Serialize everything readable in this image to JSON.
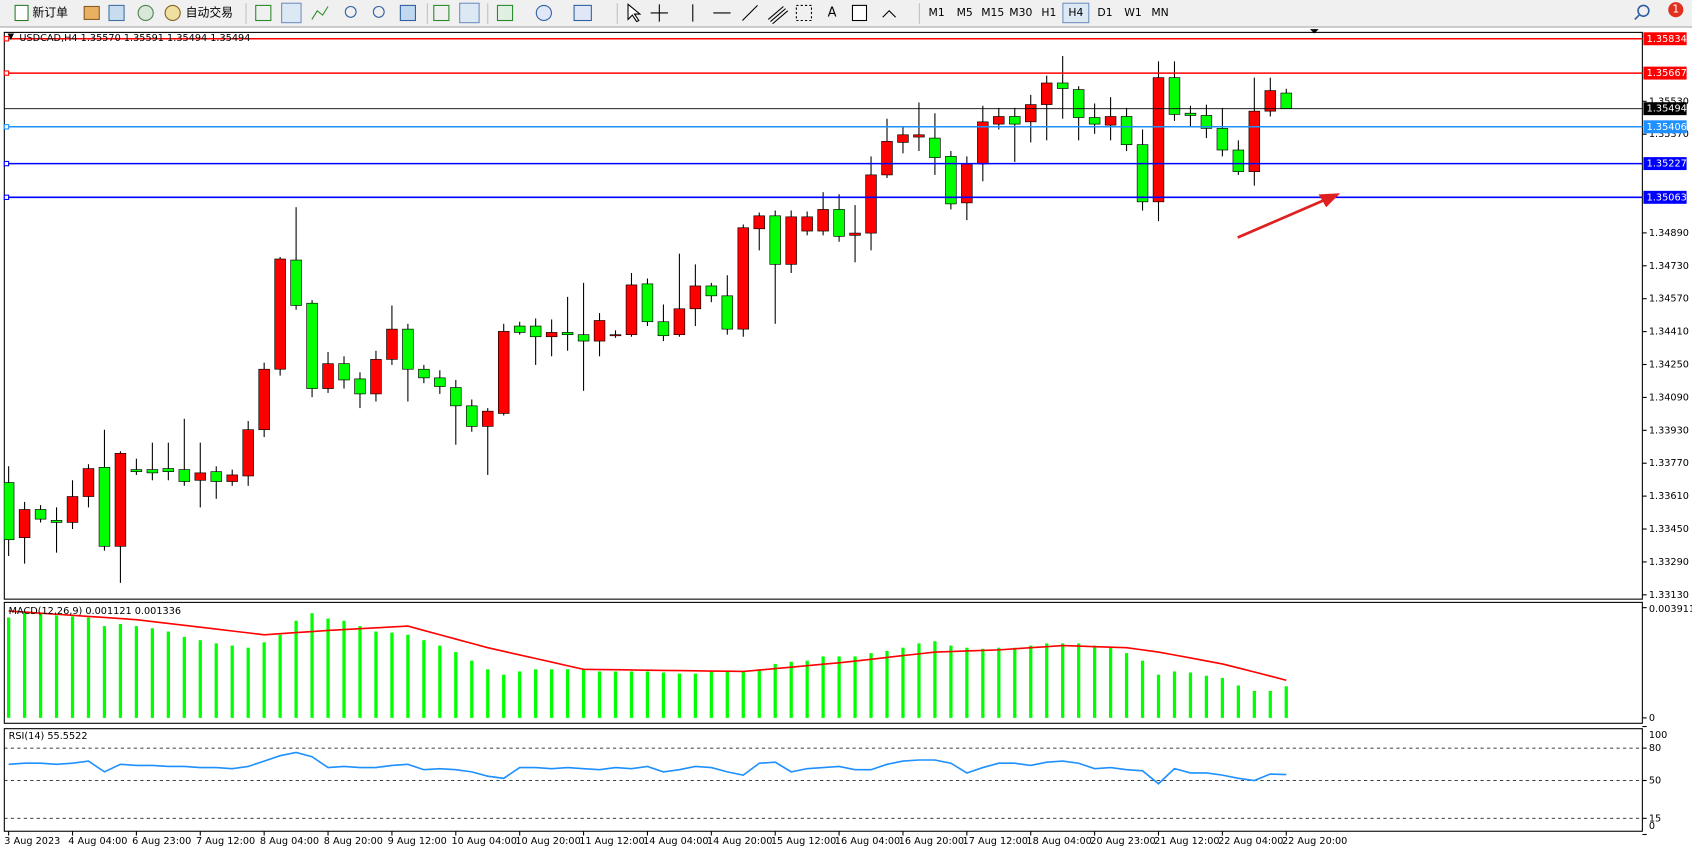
{
  "toolbar": {
    "new_order": "新订单",
    "auto_trading": "自动交易",
    "text_tool": "A",
    "timeframes": [
      "M1",
      "M5",
      "M15",
      "M30",
      "H1",
      "H4",
      "D1",
      "W1",
      "MN"
    ],
    "active_timeframe": "H4",
    "notification": "1"
  },
  "chart_data": [
    {
      "type": "candlestick",
      "title": "USDCAD,H4  1.35570 1.35591 1.35494 1.35494",
      "categories": [
        "3 Aug 2023",
        null,
        null,
        null,
        "4 Aug 04:00",
        null,
        null,
        null,
        "6 Aug 23:00",
        null,
        null,
        null,
        "7 Aug 12:00",
        null,
        null,
        null,
        "8 Aug 04:00",
        null,
        null,
        null,
        "8 Aug 20:00",
        null,
        null,
        null,
        "9 Aug 12:00",
        null,
        null,
        null,
        "10 Aug 04:00",
        null,
        null,
        null,
        "10 Aug 20:00",
        null,
        null,
        null,
        "11 Aug 12:00",
        null,
        null,
        null,
        "14 Aug 04:00",
        null,
        null,
        null,
        "14 Aug 20:00",
        null,
        null,
        null,
        "15 Aug 12:00",
        null,
        null,
        null,
        "16 Aug 04:00",
        null,
        null,
        null,
        "16 Aug 20:00",
        null,
        null,
        null,
        "17 Aug 12:00",
        null,
        null,
        null,
        "18 Aug 04:00",
        null,
        null,
        null,
        "20 Aug 23:00",
        null,
        null,
        null,
        "21 Aug 12:00",
        null,
        null,
        null,
        "22 Aug 04:00",
        null,
        null,
        null,
        "22 Aug 20:00"
      ],
      "open": [
        1.33676,
        1.33408,
        1.33545,
        1.33492,
        1.33482,
        1.33608,
        1.3375,
        1.33366,
        1.33739,
        1.33739,
        1.33744,
        1.33739,
        1.33687,
        1.33729,
        1.33681,
        1.33708,
        1.33933,
        1.34227,
        1.34758,
        1.34548,
        1.34133,
        1.34254,
        1.3418,
        1.34107,
        1.34275,
        1.34422,
        1.34227,
        1.34185,
        1.34138,
        1.34049,
        1.33949,
        1.34012,
        1.34437,
        1.34437,
        1.34385,
        1.34406,
        1.34395,
        1.34364,
        1.3439,
        1.34395,
        1.34642,
        1.34458,
        1.34395,
        1.34521,
        1.34632,
        1.34584,
        1.34422,
        1.3491,
        1.34973,
        1.34737,
        1.34899,
        1.34899,
        1.35004,
        1.34878,
        1.34889,
        1.35172,
        1.3533,
        1.35356,
        1.35351,
        1.35262,
        1.35036,
        1.35225,
        1.35419,
        1.35456,
        1.3543,
        1.35514,
        1.35619,
        1.35587,
        1.35451,
        1.35414,
        1.35456,
        1.35319,
        1.35041,
        1.35645,
        1.35472,
        1.35461,
        1.35398,
        1.35293,
        1.35188,
        1.35482,
        1.3557
      ],
      "high": [
        1.33755,
        1.33582,
        1.33566,
        1.33555,
        1.33687,
        1.33765,
        1.33933,
        1.33828,
        1.33792,
        1.3387,
        1.3387,
        1.33986,
        1.3387,
        1.33755,
        1.33739,
        1.33975,
        1.34259,
        1.34773,
        1.35015,
        1.34563,
        1.34311,
        1.3429,
        1.34212,
        1.34317,
        1.34537,
        1.34448,
        1.34248,
        1.34222,
        1.34175,
        1.3408,
        1.34038,
        1.34448,
        1.34458,
        1.34474,
        1.34469,
        1.34579,
        1.34647,
        1.345,
        1.34416,
        1.34695,
        1.34668,
        1.34542,
        1.34789,
        1.34737,
        1.34647,
        1.34684,
        1.34931,
        1.34989,
        1.34999,
        1.34999,
        1.34994,
        1.35088,
        1.35078,
        1.35025,
        1.35262,
        1.35445,
        1.35403,
        1.35524,
        1.35472,
        1.35288,
        1.35262,
        1.35508,
        1.35498,
        1.35498,
        1.35561,
        1.35655,
        1.3575,
        1.35603,
        1.35519,
        1.3555,
        1.35498,
        1.35393,
        1.35724,
        1.35724,
        1.35508,
        1.35514,
        1.35498,
        1.3534,
        1.35645,
        1.35645,
        1.35591
      ],
      "low": [
        1.33319,
        1.33282,
        1.33482,
        1.33335,
        1.3345,
        1.33555,
        1.33345,
        1.33188,
        1.33713,
        1.33687,
        1.33687,
        1.3366,
        1.33555,
        1.33597,
        1.3366,
        1.3366,
        1.33897,
        1.34196,
        1.34516,
        1.34091,
        1.34112,
        1.34133,
        1.34038,
        1.3407,
        1.34248,
        1.3407,
        1.34159,
        1.34107,
        1.3386,
        1.33923,
        1.33713,
        1.34002,
        1.34395,
        1.34248,
        1.3429,
        1.34317,
        1.34122,
        1.3429,
        1.3438,
        1.34385,
        1.34437,
        1.34364,
        1.34385,
        1.34437,
        1.34553,
        1.34395,
        1.34385,
        1.34805,
        1.34448,
        1.34695,
        1.34878,
        1.34878,
        1.34847,
        1.34747,
        1.34805,
        1.35157,
        1.35277,
        1.35288,
        1.35172,
        1.35004,
        1.34952,
        1.35141,
        1.35393,
        1.35235,
        1.3533,
        1.3534,
        1.35445,
        1.3534,
        1.35372,
        1.3534,
        1.35288,
        1.34999,
        1.34947,
        1.35435,
        1.35403,
        1.35351,
        1.35262,
        1.35172,
        1.3512,
        1.35456,
        1.35494
      ],
      "close": [
        1.33398,
        1.33545,
        1.33498,
        1.33482,
        1.33608,
        1.33744,
        1.33366,
        1.33818,
        1.33729,
        1.33723,
        1.33729,
        1.33681,
        1.33723,
        1.33681,
        1.33713,
        1.33933,
        1.34227,
        1.34763,
        1.34537,
        1.34133,
        1.34254,
        1.34175,
        1.34107,
        1.34275,
        1.34422,
        1.34227,
        1.34185,
        1.34143,
        1.34049,
        1.33949,
        1.34023,
        1.34411,
        1.34406,
        1.34385,
        1.34406,
        1.34395,
        1.34364,
        1.34464,
        1.34395,
        1.34637,
        1.34458,
        1.3439,
        1.34521,
        1.34632,
        1.34584,
        1.34422,
        1.34915,
        1.34973,
        1.34737,
        1.34968,
        1.34968,
        1.35004,
        1.34873,
        1.34889,
        1.35172,
        1.35335,
        1.35367,
        1.35367,
        1.35256,
        1.35031,
        1.35225,
        1.3543,
        1.35456,
        1.35419,
        1.35514,
        1.35619,
        1.35592,
        1.35451,
        1.35419,
        1.35456,
        1.35319,
        1.35041,
        1.35645,
        1.35466,
        1.35461,
        1.35398,
        1.35293,
        1.35188,
        1.35482,
        1.35582,
        1.35494
      ],
      "up_color": "#ff0000",
      "down_color": "#00ff00",
      "wick_color": "#000000",
      "ylim": [
        1.33109,
        1.35865
      ],
      "yticks": [
        {
          "value": 1.3313,
          "label": "1.33130"
        },
        {
          "value": 1.3329,
          "label": "1.33290"
        },
        {
          "value": 1.3345,
          "label": "1.33450"
        },
        {
          "value": 1.3361,
          "label": "1.33610"
        },
        {
          "value": 1.3377,
          "label": "1.33770"
        },
        {
          "value": 1.3393,
          "label": "1.33930"
        },
        {
          "value": 1.3409,
          "label": "1.34090"
        },
        {
          "value": 1.3425,
          "label": "1.34250"
        },
        {
          "value": 1.3441,
          "label": "1.34410"
        },
        {
          "value": 1.3457,
          "label": "1.34570"
        },
        {
          "value": 1.3473,
          "label": "1.34730"
        },
        {
          "value": 1.3489,
          "label": "1.34890"
        },
        {
          "value": 1.3537,
          "label": "1.35370"
        },
        {
          "value": 1.3553,
          "label": "1.35530"
        }
      ],
      "levels": [
        {
          "value": 1.35834,
          "color": "#ff0000"
        },
        {
          "value": 1.35667,
          "color": "#ff0000"
        },
        {
          "value": 1.35494,
          "color": "#000000"
        },
        {
          "value": 1.35406,
          "color": "#1e90ff"
        },
        {
          "value": 1.35227,
          "color": "#0000ff"
        },
        {
          "value": 1.35063,
          "color": "#0000ff"
        }
      ]
    },
    {
      "type": "macd",
      "title": "MACD(12,26,9) 0.001121 0.001336",
      "histogram": {
        "color": "#00ff00",
        "values": [
          0.003562,
          0.003715,
          0.003715,
          0.003639,
          0.0036,
          0.003562,
          0.003256,
          0.003332,
          0.003256,
          0.003179,
          0.003064,
          0.002873,
          0.002758,
          0.002643,
          0.002566,
          0.00249,
          0.002681,
          0.002949,
          0.003447,
          0.003715,
          0.003524,
          0.003447,
          0.003256,
          0.003064,
          0.003026,
          0.002949,
          0.002758,
          0.002566,
          0.002336,
          0.00203,
          0.001724,
          0.001532,
          0.001647,
          0.001724,
          0.001724,
          0.001724,
          0.001724,
          0.001647,
          0.001647,
          0.001647,
          0.001647,
          0.001609,
          0.00157,
          0.00157,
          0.001647,
          0.001647,
          0.001647,
          0.001724,
          0.001915,
          0.001992,
          0.00203,
          0.002183,
          0.002183,
          0.002183,
          0.002298,
          0.002375,
          0.00249,
          0.002643,
          0.002719,
          0.002566,
          0.00249,
          0.002451,
          0.00249,
          0.00249,
          0.002566,
          0.002643,
          0.002643,
          0.002643,
          0.002566,
          0.00249,
          0.002298,
          0.00203,
          0.001532,
          0.001647,
          0.001609,
          0.001494,
          0.001417,
          0.001149,
          0.000958,
          0.000958,
          0.001121
        ]
      },
      "signal": {
        "color": "#ff0000",
        "values": [
          0.003792,
          0.003753,
          0.003715,
          0.003677,
          0.003639,
          0.0036,
          0.003562,
          0.003524,
          0.003485,
          0.003418,
          0.003351,
          0.003284,
          0.003217,
          0.00315,
          0.003083,
          0.003016,
          0.002949,
          0.002987,
          0.003026,
          0.003064,
          0.003102,
          0.003133,
          0.003164,
          0.003194,
          0.003225,
          0.003256,
          0.003102,
          0.002949,
          0.002796,
          0.002643,
          0.00249,
          0.002363,
          0.002233,
          0.002107,
          0.00198,
          0.00185,
          0.001724,
          0.001716,
          0.001708,
          0.0017,
          0.001693,
          0.001685,
          0.001678,
          0.00167,
          0.001662,
          0.001655,
          0.001647,
          0.001697,
          0.00175,
          0.0018,
          0.00185,
          0.001904,
          0.001953,
          0.002018,
          0.00208,
          0.002145,
          0.00221,
          0.002271,
          0.002336,
          0.002355,
          0.002375,
          0.002394,
          0.002413,
          0.002451,
          0.00249,
          0.002528,
          0.002566,
          0.002547,
          0.002528,
          0.002509,
          0.00249,
          0.002413,
          0.002336,
          0.002231,
          0.002126,
          0.00202,
          0.001915,
          0.001771,
          0.001628,
          0.001484,
          0.001336
        ]
      },
      "ylim": [
        -0.000192,
        0.004098
      ],
      "yticks": [
        0,
        0.003911
      ]
    },
    {
      "type": "line",
      "title": "RSI(14) 55.5522",
      "color": "#1e90ff",
      "values": [
        65,
        66,
        66,
        65,
        66,
        68,
        58,
        65,
        64,
        64,
        63,
        63,
        62,
        62,
        61,
        63,
        68,
        73,
        76,
        72,
        62,
        63,
        62,
        62,
        64,
        65,
        60,
        61,
        60,
        58,
        54,
        52,
        62,
        62,
        61,
        62,
        61,
        60,
        62,
        61,
        63,
        58,
        60,
        63,
        62,
        58,
        55,
        66,
        67,
        58,
        61,
        62,
        63,
        60,
        60,
        65,
        68,
        69,
        69,
        66,
        57,
        62,
        66,
        66,
        64,
        67,
        68,
        66,
        61,
        62,
        60,
        59,
        47,
        61,
        57,
        57,
        55,
        52,
        50,
        56,
        55.5522
      ],
      "ylim": [
        0,
        100
      ],
      "yticks": [
        0,
        15,
        50,
        80,
        100
      ],
      "levels": [
        15,
        50,
        80
      ]
    }
  ]
}
